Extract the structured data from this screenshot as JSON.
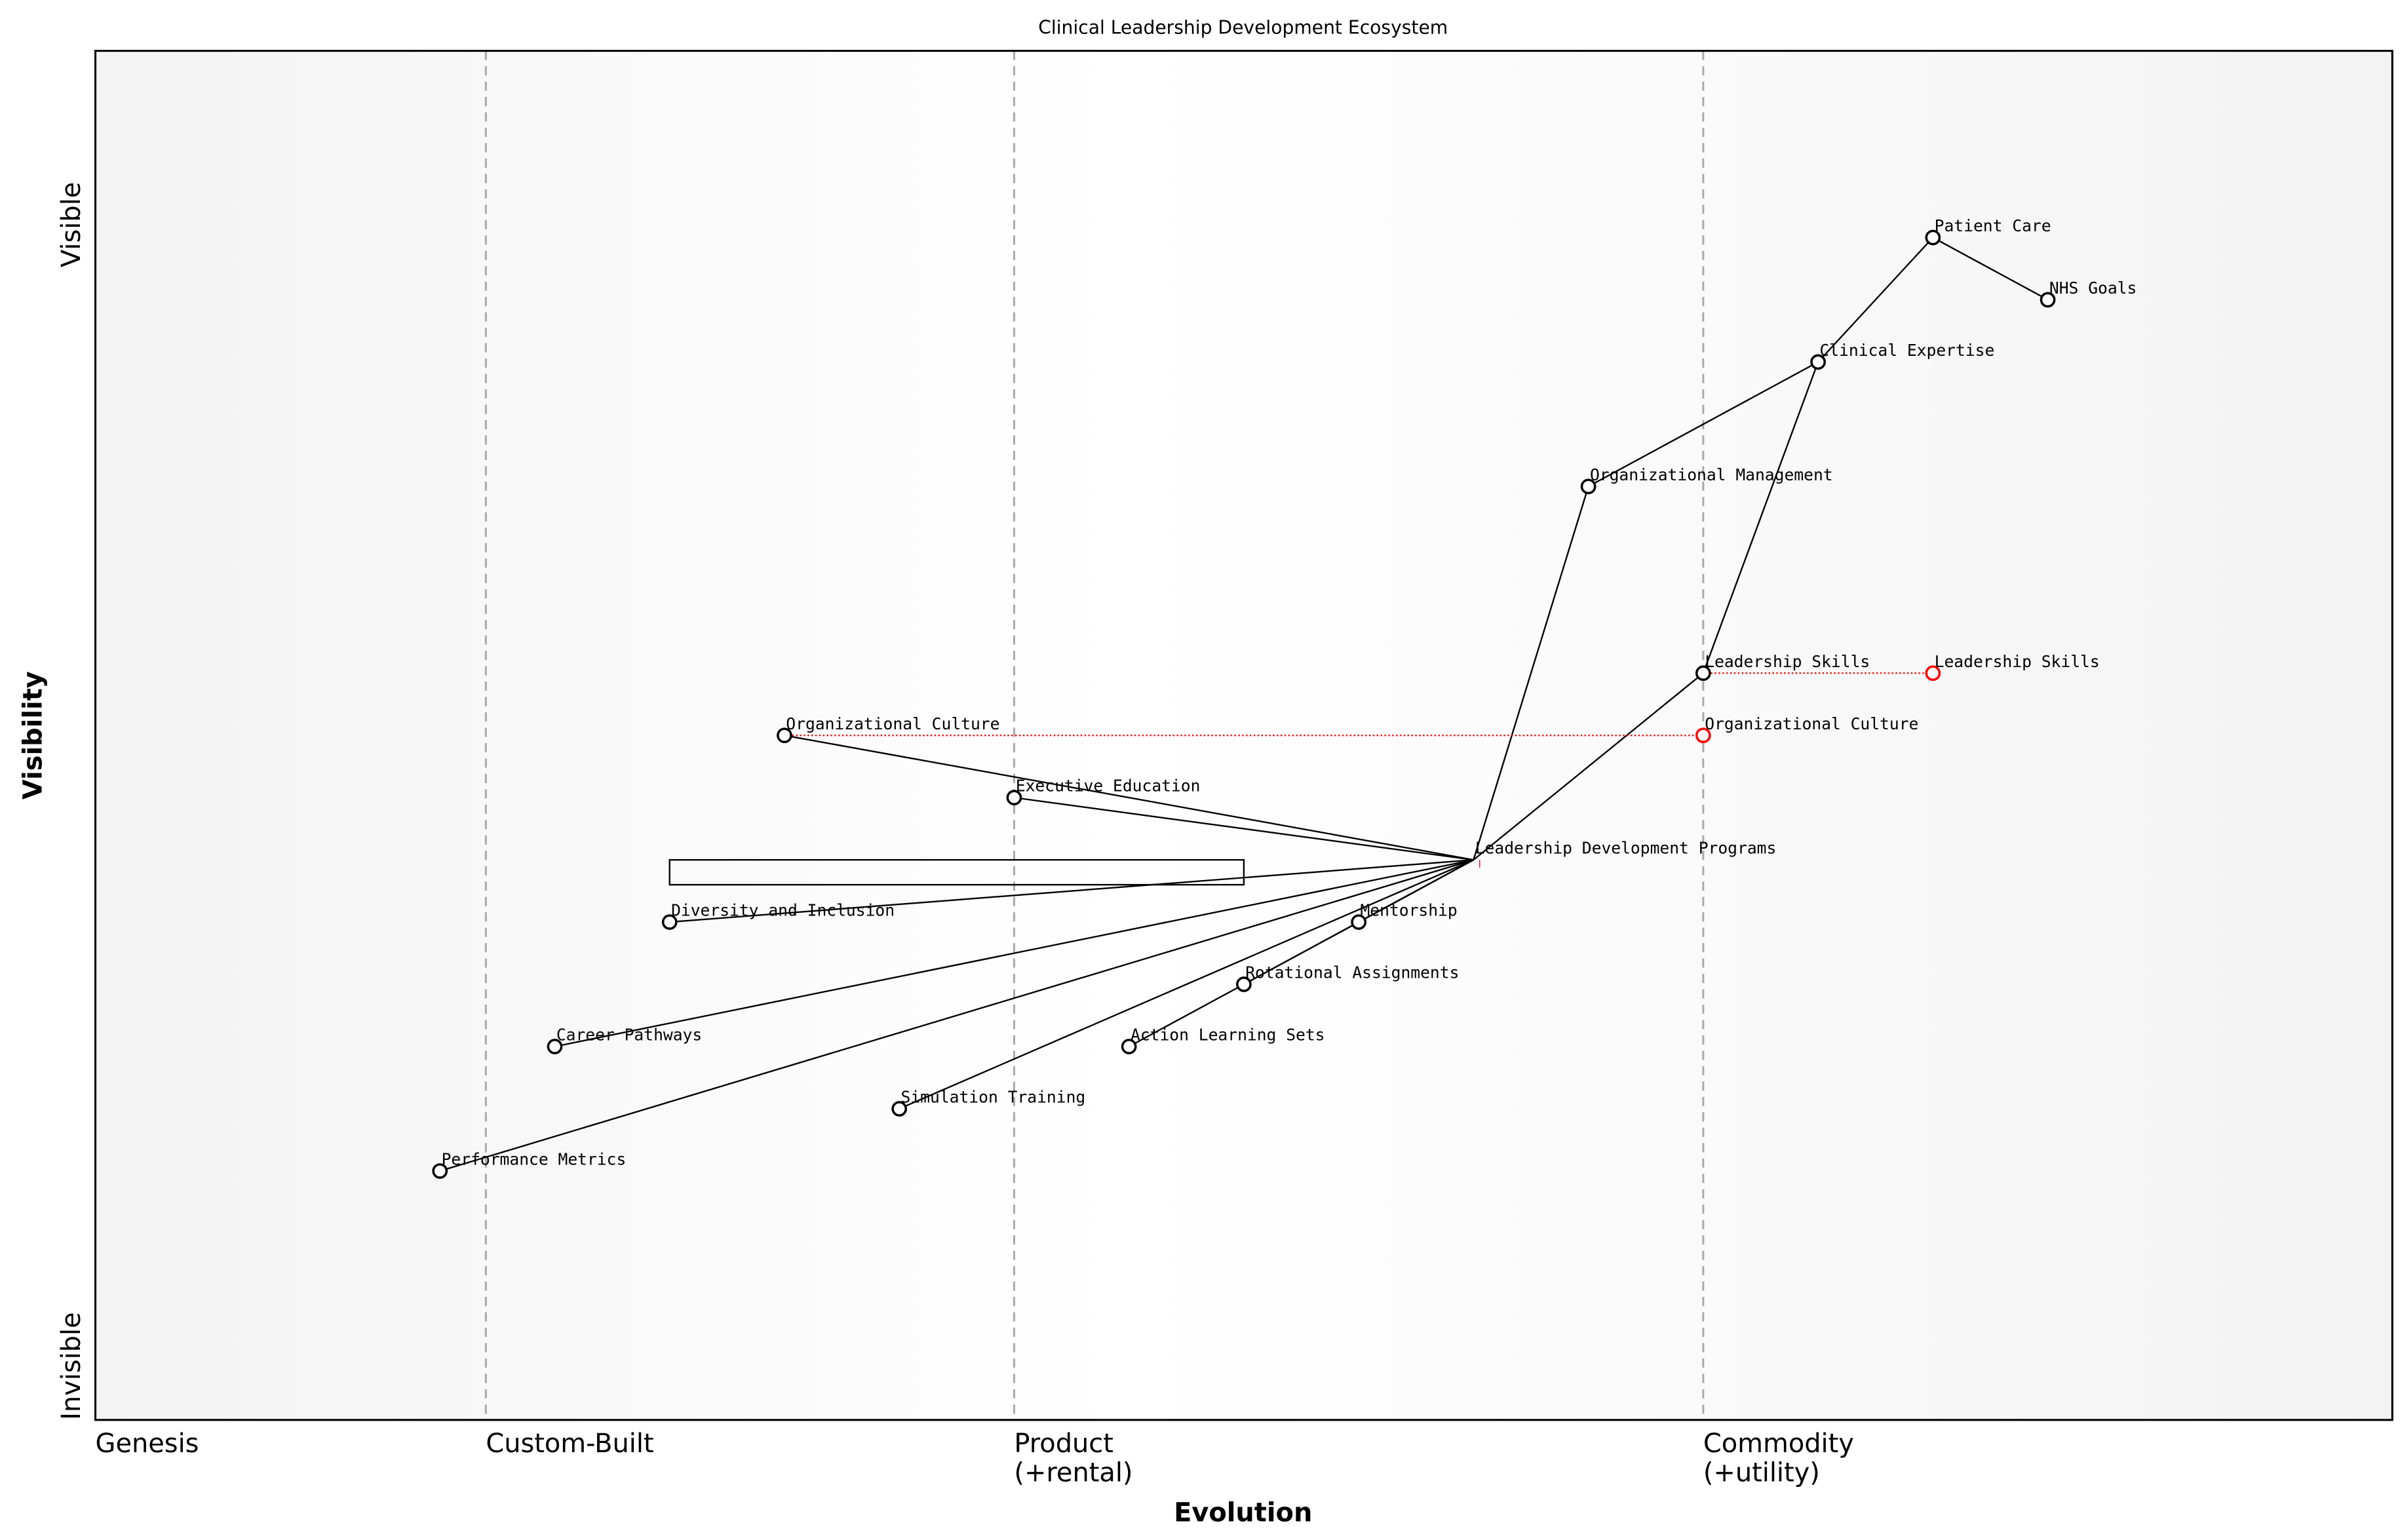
{
  "title": "Clinical Leadership Development Ecosystem",
  "xlabel": "Evolution",
  "ylabel": "Visibility",
  "y_ticks": {
    "top": "Visible",
    "bottom": "Invisible"
  },
  "stages": [
    {
      "label": "Genesis",
      "x": 0.0,
      "line": false
    },
    {
      "label": "Custom-Built",
      "x": 0.17,
      "line": true
    },
    {
      "label": "Product\n(+rental)",
      "x": 0.4,
      "line": true
    },
    {
      "label": "Commodity\n(+utility)",
      "x": 0.7,
      "line": true
    }
  ],
  "chart_data": {
    "type": "scatter",
    "title": "Clinical Leadership Development Ecosystem",
    "xlabel": "Evolution",
    "ylabel": "Visibility",
    "xlim": [
      0,
      1
    ],
    "ylim": [
      0,
      1.1
    ],
    "components": [
      {
        "name": "Patient Care",
        "evolution": 0.8,
        "visibility": 0.95
      },
      {
        "name": "NHS Goals",
        "evolution": 0.85,
        "visibility": 0.9
      },
      {
        "name": "Clinical Expertise",
        "evolution": 0.75,
        "visibility": 0.85
      },
      {
        "name": "Organizational Management",
        "evolution": 0.65,
        "visibility": 0.75
      },
      {
        "name": "Leadership Skills",
        "evolution": 0.7,
        "visibility": 0.6
      },
      {
        "name": "Organizational Culture",
        "evolution": 0.3,
        "visibility": 0.55
      },
      {
        "name": "Executive Education",
        "evolution": 0.4,
        "visibility": 0.5
      },
      {
        "name": "Leadership Development Programs",
        "evolution": 0.6,
        "visibility": 0.45,
        "marker": false
      },
      {
        "name": "Diversity and Inclusion",
        "evolution": 0.25,
        "visibility": 0.4
      },
      {
        "name": "Mentorship",
        "evolution": 0.55,
        "visibility": 0.4
      },
      {
        "name": "Rotational Assignments",
        "evolution": 0.5,
        "visibility": 0.35
      },
      {
        "name": "Action Learning Sets",
        "evolution": 0.45,
        "visibility": 0.3
      },
      {
        "name": "Career Pathways",
        "evolution": 0.2,
        "visibility": 0.3
      },
      {
        "name": "Simulation Training",
        "evolution": 0.35,
        "visibility": 0.25
      },
      {
        "name": "Performance Metrics",
        "evolution": 0.15,
        "visibility": 0.2
      }
    ],
    "links": [
      [
        "Patient Care",
        "NHS Goals"
      ],
      [
        "Patient Care",
        "Clinical Expertise"
      ],
      [
        "Clinical Expertise",
        "Organizational Management"
      ],
      [
        "Clinical Expertise",
        "Leadership Skills"
      ],
      [
        "Organizational Management",
        "Leadership Development Programs"
      ],
      [
        "Leadership Skills",
        "Leadership Development Programs"
      ],
      [
        "Leadership Development Programs",
        "Organizational Culture"
      ],
      [
        "Leadership Development Programs",
        "Executive Education"
      ],
      [
        "Leadership Development Programs",
        "Diversity and Inclusion"
      ],
      [
        "Leadership Development Programs",
        "Career Pathways"
      ],
      [
        "Leadership Development Programs",
        "Performance Metrics"
      ],
      [
        "Leadership Development Programs",
        "Simulation Training"
      ],
      [
        "Leadership Development Programs",
        "Action Learning Sets"
      ],
      [
        "Leadership Development Programs",
        "Rotational Assignments"
      ],
      [
        "Leadership Development Programs",
        "Mentorship"
      ]
    ],
    "evolutions": [
      {
        "name": "Leadership Skills",
        "from": 0.7,
        "to": 0.8,
        "visibility": 0.6
      },
      {
        "name": "Organizational Culture",
        "from": 0.3,
        "to": 0.7,
        "visibility": 0.55
      }
    ],
    "annotation_box": {
      "evolution": [
        0.25,
        0.5
      ],
      "visibility": [
        0.43,
        0.45
      ]
    },
    "colors": {
      "component": "#000000",
      "evolved": "#ff0000",
      "stage_line": "#aaaaaa"
    }
  }
}
